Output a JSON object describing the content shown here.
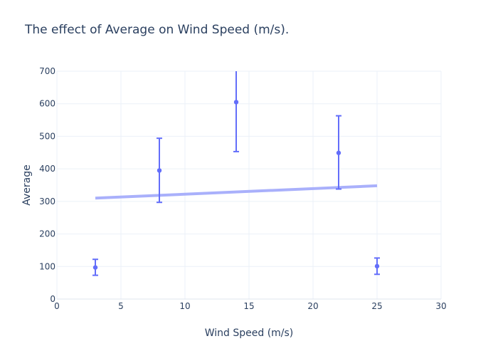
{
  "chart_data": {
    "type": "scatter",
    "title": "The effect of Average on Wind Speed (m/s).",
    "xlabel": "Wind Speed (m/s)",
    "ylabel": "Average",
    "xlim": [
      0,
      30
    ],
    "ylim": [
      0,
      700
    ],
    "x_ticks": [
      0,
      5,
      10,
      15,
      20,
      25,
      30
    ],
    "y_ticks": [
      0,
      100,
      200,
      300,
      400,
      500,
      600,
      700
    ],
    "grid": true,
    "legend": "none",
    "series": [
      {
        "type": "scatter-with-error-bars",
        "color": "#636efa",
        "points": [
          {
            "x": 3,
            "y": 97,
            "y_low": 73,
            "y_high": 122
          },
          {
            "x": 8,
            "y": 395,
            "y_low": 297,
            "y_high": 494
          },
          {
            "x": 14,
            "y": 605,
            "y_low": 453,
            "y_high": 700
          },
          {
            "x": 22,
            "y": 449,
            "y_low": 338,
            "y_high": 563
          },
          {
            "x": 25,
            "y": 101,
            "y_low": 76,
            "y_high": 126
          }
        ]
      },
      {
        "type": "trend-line",
        "color": "#a9b0fb",
        "x": [
          3,
          25
        ],
        "y": [
          310,
          348
        ]
      }
    ]
  }
}
